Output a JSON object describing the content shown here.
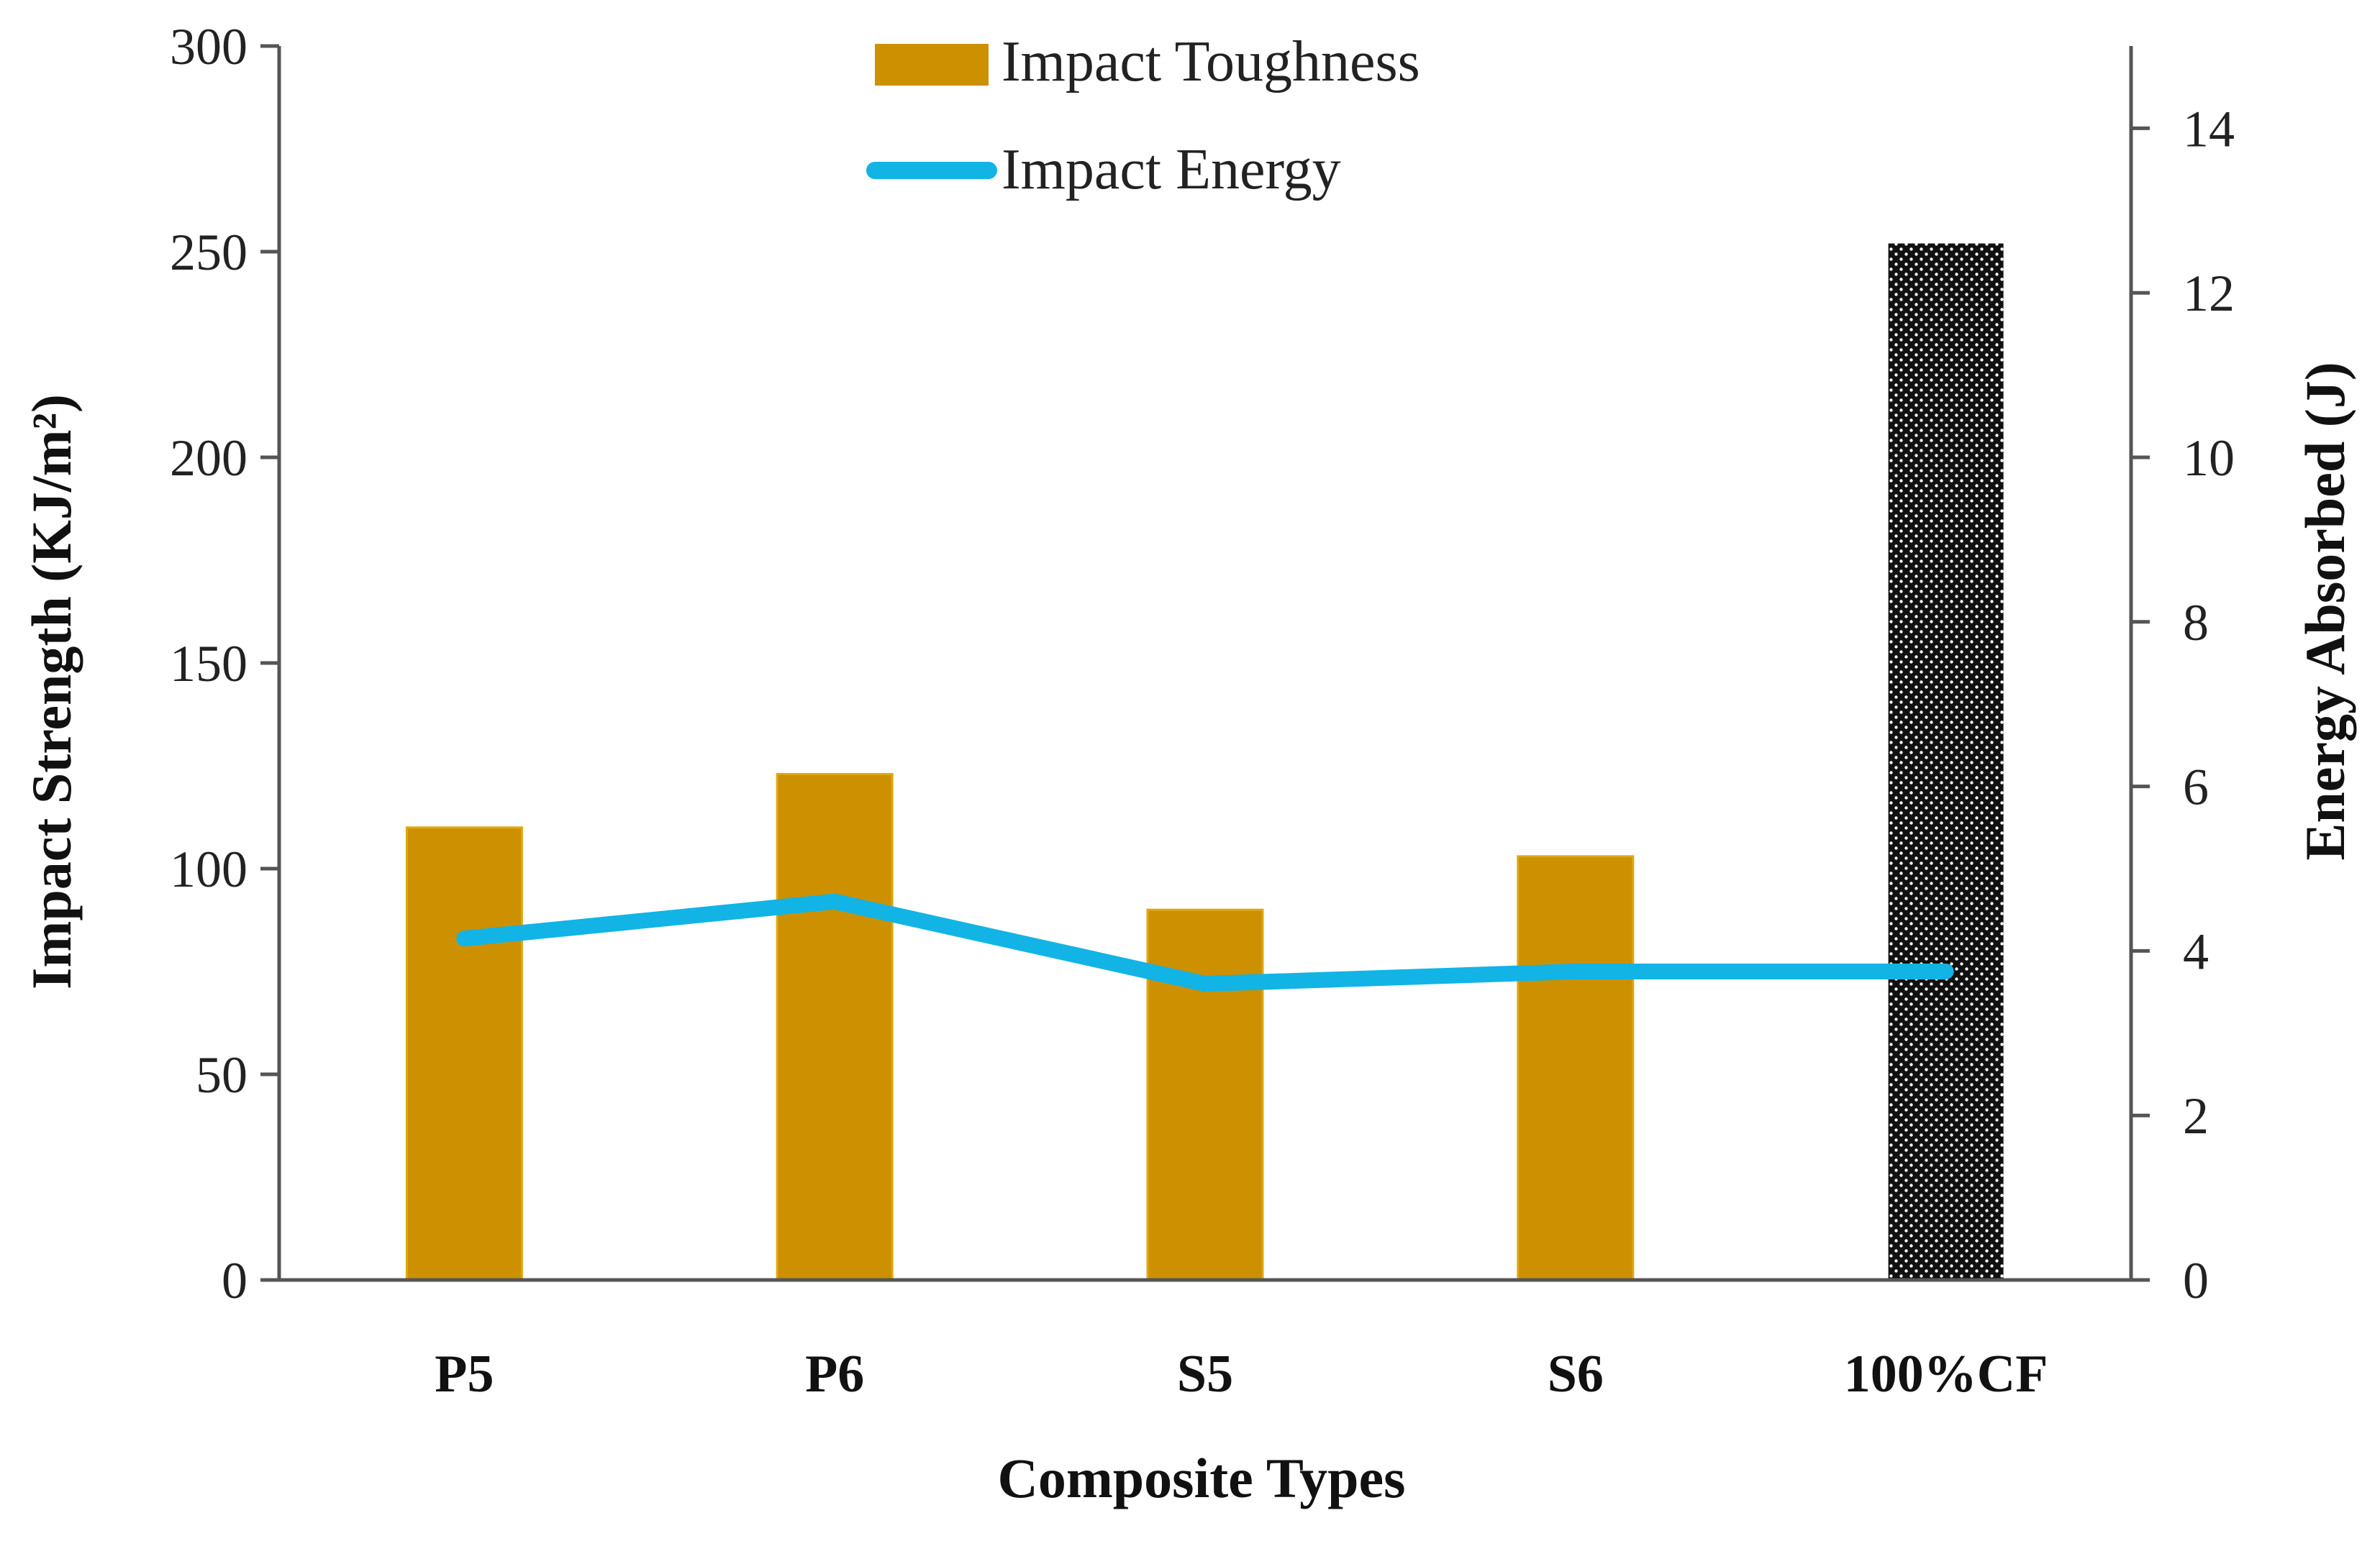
{
  "chart_data": {
    "type": "bar",
    "title": "",
    "xlabel": "Composite Types",
    "ylabel": "Impact Strength (KJ/m²)",
    "y2label": "Energy Absorbed (J)",
    "categories": [
      "P5",
      "P6",
      "S5",
      "S6",
      "100%CF"
    ],
    "ylim": [
      0,
      300
    ],
    "yticks": [
      0,
      50,
      100,
      150,
      200,
      250,
      300
    ],
    "y2lim": [
      0,
      15
    ],
    "y2ticks": [
      0,
      2,
      4,
      6,
      8,
      10,
      12,
      14
    ],
    "grid": false,
    "legend_position": "top-center",
    "series": [
      {
        "name": "Impact Toughness",
        "kind": "bar",
        "axis": "left",
        "values": [
          110,
          123,
          90,
          103,
          252
        ],
        "color": "#CC9000",
        "patterned_categories": [
          "100%CF"
        ]
      },
      {
        "name": "Impact Energy",
        "kind": "line",
        "axis": "right",
        "values": [
          4.15,
          4.6,
          3.6,
          3.75,
          3.75
        ],
        "color": "#12B4E6"
      }
    ]
  }
}
